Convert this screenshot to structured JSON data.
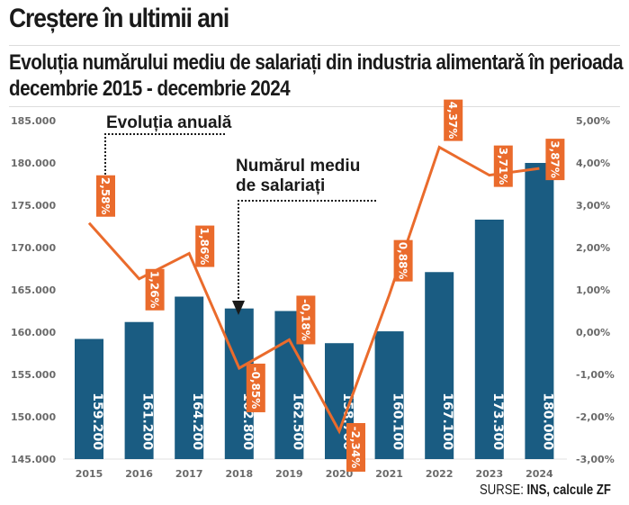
{
  "header": {
    "title": "Creștere în ultimii ani",
    "subtitle": "Evoluția numărului mediu de salariați din industria alimentară în perioada decembrie 2015 - decembrie 2024"
  },
  "footer": {
    "source_prefix": "SURSE:",
    "source_body": "INS, calcule ZF"
  },
  "colors": {
    "bar": "#1a5c82",
    "line": "#ea6b2c",
    "label_bg": "#ea6b2c",
    "axis_text": "#6a6a6a"
  },
  "chart_data": {
    "type": "bar+line",
    "title": "Evoluția numărului mediu de salariați din industria alimentară în perioada decembrie 2015 - decembrie 2024",
    "categories": [
      "2015",
      "2016",
      "2017",
      "2018",
      "2019",
      "2020",
      "2021",
      "2022",
      "2023",
      "2024"
    ],
    "series": [
      {
        "name": "Numărul mediu de salariați",
        "type": "bar",
        "axis": "left",
        "values": [
          159200,
          161200,
          164200,
          162800,
          162500,
          158700,
          160100,
          167100,
          173300,
          180000
        ],
        "labels": [
          "159.200",
          "161.200",
          "164.200",
          "162.800",
          "162.500",
          "158.700",
          "160.100",
          "167.100",
          "173.300",
          "180.000"
        ]
      },
      {
        "name": "Evoluția anuală",
        "type": "line",
        "axis": "right",
        "values": [
          2.58,
          1.26,
          1.86,
          -0.85,
          -0.18,
          -2.34,
          0.88,
          4.37,
          3.71,
          3.87
        ],
        "labels": [
          "2,58%",
          "1,26%",
          "1,86%",
          "-0,85%",
          "-0,18%",
          "-2,34%",
          "0,88%",
          "4,37%",
          "3,71%",
          "3,87%"
        ]
      }
    ],
    "y_left": {
      "ylim": [
        145000,
        185000
      ],
      "ticks": [
        145000,
        150000,
        155000,
        160000,
        165000,
        170000,
        175000,
        180000,
        185000
      ],
      "tick_labels": [
        "145.000",
        "150.000",
        "155.000",
        "160.000",
        "165.000",
        "170.000",
        "175.000",
        "180.000",
        "185.000"
      ]
    },
    "y_right": {
      "ylim": [
        -3,
        5
      ],
      "ticks": [
        -3,
        -2,
        -1,
        0,
        1,
        2,
        3,
        4,
        5
      ],
      "tick_labels": [
        "-3,00%",
        "-2,00%",
        "-1,00%",
        "0,00%",
        "1,00%",
        "2,00%",
        "3,00%",
        "4,00%",
        "5,00%"
      ]
    },
    "annotations": [
      {
        "text": "Evoluția anuală",
        "points_to": "line 2015"
      },
      {
        "text_line1": "Numărul mediu",
        "text_line2": "de salariați",
        "points_to": "bar 2018"
      }
    ],
    "grid": false,
    "legend": "none"
  }
}
